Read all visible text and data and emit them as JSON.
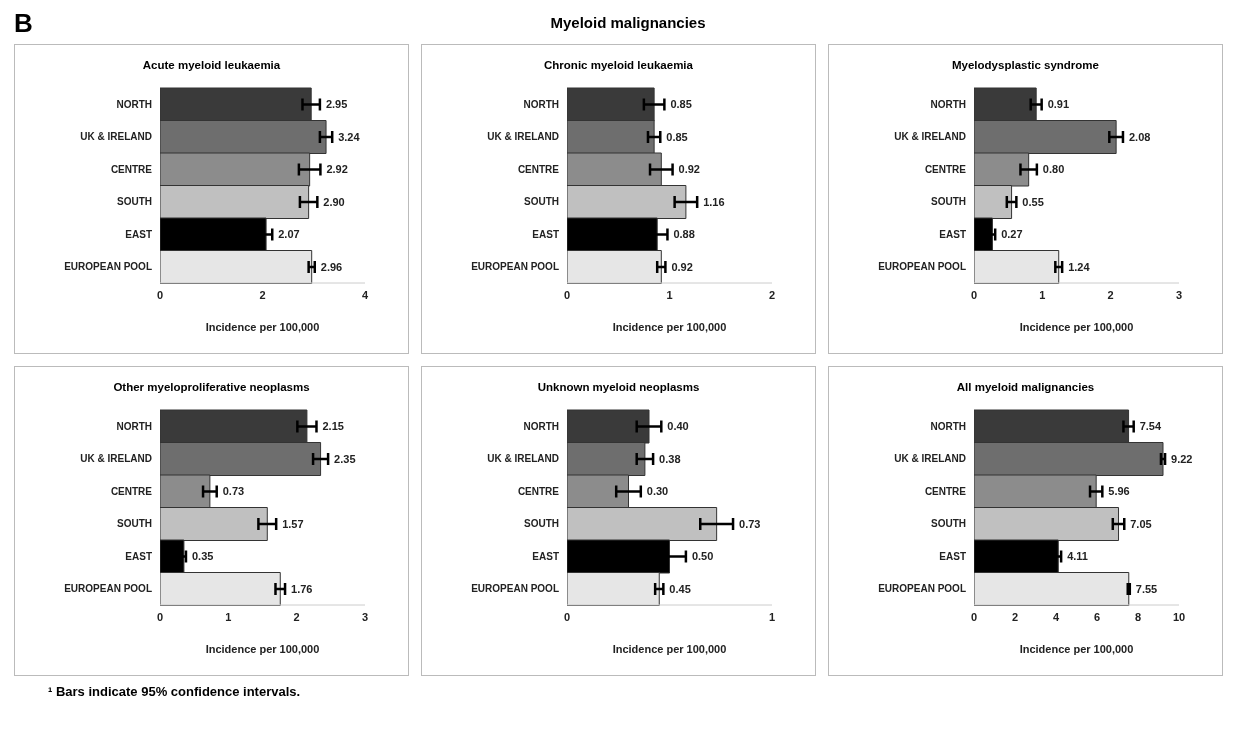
{
  "chart_data": [
    {
      "type": "bar",
      "orientation": "horizontal",
      "title": "Acute myeloid leukaemia",
      "xlabel": "Incidence per 100,000",
      "annotations": [
        "B",
        "Myeloid malignancies"
      ],
      "categories": [
        "NORTH",
        "UK & IRELAND",
        "CENTRE",
        "SOUTH",
        "EAST",
        "EUROPEAN POOL"
      ],
      "values": [
        2.95,
        3.24,
        2.92,
        2.9,
        2.07,
        2.96
      ],
      "errors": [
        0.17,
        0.12,
        0.21,
        0.17,
        0.12,
        0.06
      ],
      "colors": [
        "#3a3a3a",
        "#6e6e6e",
        "#8c8c8c",
        "#c0c0c0",
        "#000000",
        "#e6e6e6"
      ],
      "xlim": [
        0,
        4
      ],
      "xticks": [
        0,
        2,
        4
      ],
      "value_labels": [
        "2.95",
        "3.24",
        "2.92",
        "2.90",
        "2.07",
        "2.96"
      ]
    },
    {
      "type": "bar",
      "orientation": "horizontal",
      "title": "Chronic myeloid leukaemia",
      "xlabel": "Incidence per 100,000",
      "categories": [
        "NORTH",
        "UK & IRELAND",
        "CENTRE",
        "SOUTH",
        "EAST",
        "EUROPEAN POOL"
      ],
      "values": [
        0.85,
        0.85,
        0.92,
        1.16,
        0.88,
        0.92
      ],
      "errors": [
        0.1,
        0.06,
        0.11,
        0.11,
        0.1,
        0.04
      ],
      "colors": [
        "#3a3a3a",
        "#6e6e6e",
        "#8c8c8c",
        "#c0c0c0",
        "#000000",
        "#e6e6e6"
      ],
      "xlim": [
        0,
        2
      ],
      "xticks": [
        0,
        1,
        2
      ],
      "value_labels": [
        "0.85",
        "0.85",
        "0.92",
        "1.16",
        "0.88",
        "0.92"
      ]
    },
    {
      "type": "bar",
      "orientation": "horizontal",
      "title": "Myelodysplastic syndrome",
      "xlabel": "Incidence per 100,000",
      "categories": [
        "NORTH",
        "UK & IRELAND",
        "CENTRE",
        "SOUTH",
        "EAST",
        "EUROPEAN POOL"
      ],
      "values": [
        0.91,
        2.08,
        0.8,
        0.55,
        0.27,
        1.24
      ],
      "errors": [
        0.08,
        0.1,
        0.12,
        0.07,
        0.04,
        0.05
      ],
      "colors": [
        "#3a3a3a",
        "#6e6e6e",
        "#8c8c8c",
        "#c0c0c0",
        "#000000",
        "#e6e6e6"
      ],
      "xlim": [
        0,
        3
      ],
      "xticks": [
        0,
        1,
        2,
        3
      ],
      "value_labels": [
        "0.91",
        "2.08",
        "0.80",
        "0.55",
        "0.27",
        "1.24"
      ]
    },
    {
      "type": "bar",
      "orientation": "horizontal",
      "title": "Other myeloproliferative neoplasms",
      "xlabel": "Incidence per 100,000",
      "categories": [
        "NORTH",
        "UK & IRELAND",
        "CENTRE",
        "SOUTH",
        "EAST",
        "EUROPEAN POOL"
      ],
      "values": [
        2.15,
        2.35,
        0.73,
        1.57,
        0.35,
        1.76
      ],
      "errors": [
        0.14,
        0.11,
        0.1,
        0.13,
        0.03,
        0.07
      ],
      "colors": [
        "#3a3a3a",
        "#6e6e6e",
        "#8c8c8c",
        "#c0c0c0",
        "#000000",
        "#e6e6e6"
      ],
      "xlim": [
        0,
        3
      ],
      "xticks": [
        0,
        1,
        2,
        3
      ],
      "value_labels": [
        "2.15",
        "2.35",
        "0.73",
        "1.57",
        "0.35",
        "1.76"
      ]
    },
    {
      "type": "bar",
      "orientation": "horizontal",
      "title": "Unknown myeloid neoplasms",
      "xlabel": "Incidence per 100,000",
      "categories": [
        "NORTH",
        "UK & IRELAND",
        "CENTRE",
        "SOUTH",
        "EAST",
        "EUROPEAN POOL"
      ],
      "values": [
        0.4,
        0.38,
        0.3,
        0.73,
        0.5,
        0.45
      ],
      "errors": [
        0.06,
        0.04,
        0.06,
        0.08,
        0.08,
        0.02
      ],
      "colors": [
        "#3a3a3a",
        "#6e6e6e",
        "#8c8c8c",
        "#c0c0c0",
        "#000000",
        "#e6e6e6"
      ],
      "xlim": [
        0,
        1
      ],
      "xticks": [
        0,
        1
      ],
      "value_labels": [
        "0.40",
        "0.38",
        "0.30",
        "0.73",
        "0.50",
        "0.45"
      ]
    },
    {
      "type": "bar",
      "orientation": "horizontal",
      "title": "All myeloid malignancies",
      "xlabel": "Incidence per 100,000",
      "annotations": [
        "¹ Bars indicate 95% confidence intervals."
      ],
      "categories": [
        "NORTH",
        "UK & IRELAND",
        "CENTRE",
        "SOUTH",
        "EAST",
        "EUROPEAN POOL"
      ],
      "values": [
        7.54,
        9.22,
        5.96,
        7.05,
        4.11,
        7.55
      ],
      "errors": [
        0.25,
        0.1,
        0.3,
        0.28,
        0.14,
        0.05
      ],
      "colors": [
        "#3a3a3a",
        "#6e6e6e",
        "#8c8c8c",
        "#c0c0c0",
        "#000000",
        "#e6e6e6"
      ],
      "xlim": [
        0,
        10
      ],
      "xticks": [
        0,
        2,
        4,
        6,
        8,
        10
      ],
      "value_labels": [
        "7.54",
        "9.22",
        "5.96",
        "7.05",
        "4.11",
        "7.55"
      ]
    }
  ]
}
